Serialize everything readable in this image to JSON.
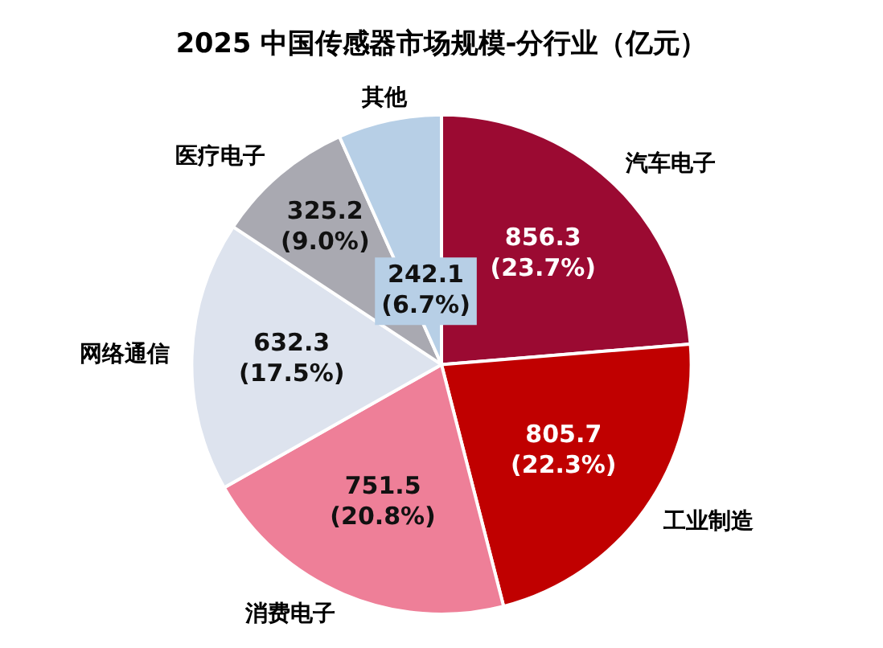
{
  "chart_data": {
    "type": "pie",
    "title": "2025 中国传感器市场规模-分行业（亿元）",
    "categories": [
      "汽车电子",
      "工业制造",
      "消费电子",
      "网络通信",
      "医疗电子",
      "其他"
    ],
    "values": [
      856.3,
      805.7,
      751.5,
      632.3,
      325.2,
      242.1
    ],
    "colors": [
      "#9b0a32",
      "#c00000",
      "#ee7f98",
      "#dde3ee",
      "#a9a9b1",
      "#b7cfe6"
    ],
    "value_labels": [
      "856.3 (23.7%)",
      "805.7 (22.3%)",
      "751.5 (20.8%)",
      "632.3 (17.5%)",
      "325.2 (9.0%)",
      "242.1 (6.7%)"
    ],
    "legend": false
  }
}
